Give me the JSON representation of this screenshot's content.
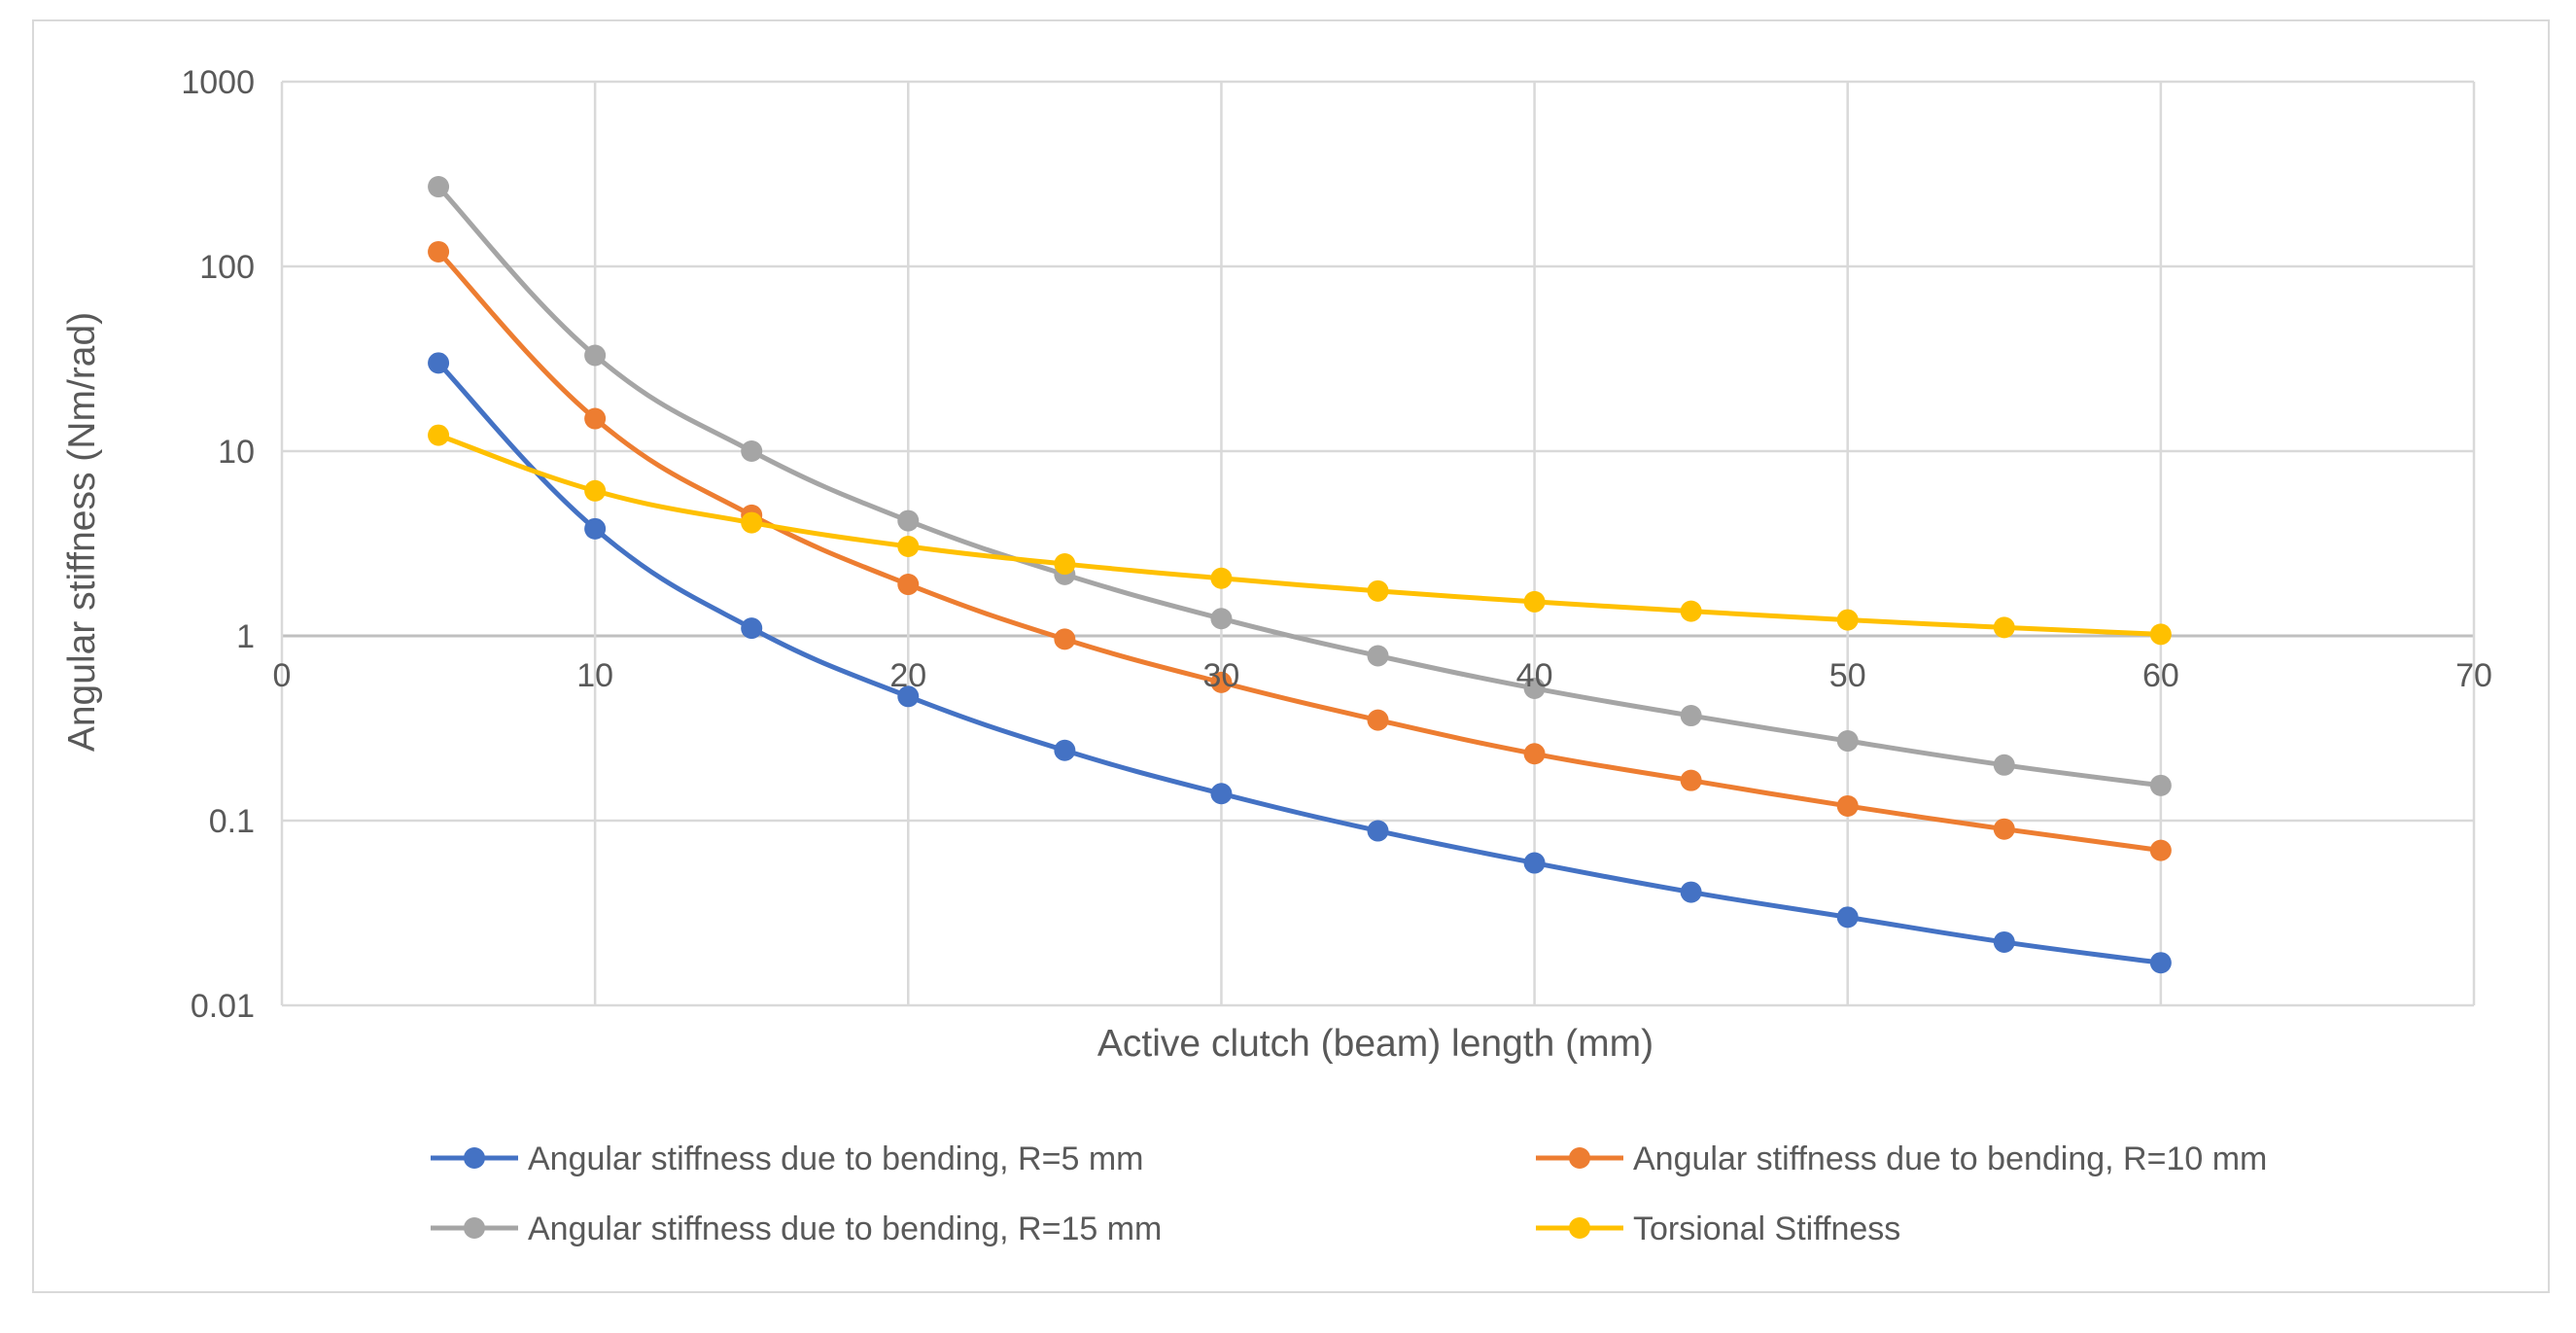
{
  "chart_data": {
    "type": "line",
    "title": "",
    "xlabel": "Active clutch (beam) length (mm)",
    "ylabel": "Angular stiffness (Nm/rad)",
    "xlim": [
      0,
      70
    ],
    "ylim": [
      0.01,
      1000
    ],
    "yscale": "log",
    "grid": true,
    "legend_position": "bottom",
    "x_ticks": [
      0,
      10,
      20,
      30,
      40,
      50,
      60,
      70
    ],
    "x_tick_labels": [
      "0",
      "10",
      "20",
      "30",
      "40",
      "50",
      "60",
      "70"
    ],
    "y_ticks": [
      0.01,
      0.1,
      1,
      10,
      100,
      1000
    ],
    "y_tick_labels": [
      "0.01",
      "0.1",
      "1",
      "10",
      "100",
      "1000"
    ],
    "x": [
      5,
      10,
      15,
      20,
      25,
      30,
      35,
      40,
      45,
      50,
      55,
      60
    ],
    "series": [
      {
        "name": "Angular stiffness due to bending, R=5 mm",
        "color": "#4472C4",
        "values": [
          30,
          3.8,
          1.1,
          0.47,
          0.24,
          0.14,
          0.088,
          0.059,
          0.041,
          0.03,
          0.022,
          0.017
        ]
      },
      {
        "name": "Angular stiffness due to bending, R=10 mm",
        "color": "#ED7D31",
        "values": [
          120,
          15,
          4.5,
          1.9,
          0.96,
          0.56,
          0.35,
          0.23,
          0.165,
          0.12,
          0.09,
          0.069
        ]
      },
      {
        "name": "Angular stiffness due to bending, R=15 mm",
        "color": "#A5A5A5",
        "values": [
          270,
          33,
          10,
          4.2,
          2.15,
          1.24,
          0.78,
          0.52,
          0.37,
          0.27,
          0.2,
          0.155
        ]
      },
      {
        "name": "Torsional Stiffness",
        "color": "#FFC000",
        "values": [
          12.2,
          6.1,
          4.1,
          3.05,
          2.45,
          2.05,
          1.75,
          1.53,
          1.36,
          1.22,
          1.11,
          1.02
        ]
      }
    ]
  }
}
